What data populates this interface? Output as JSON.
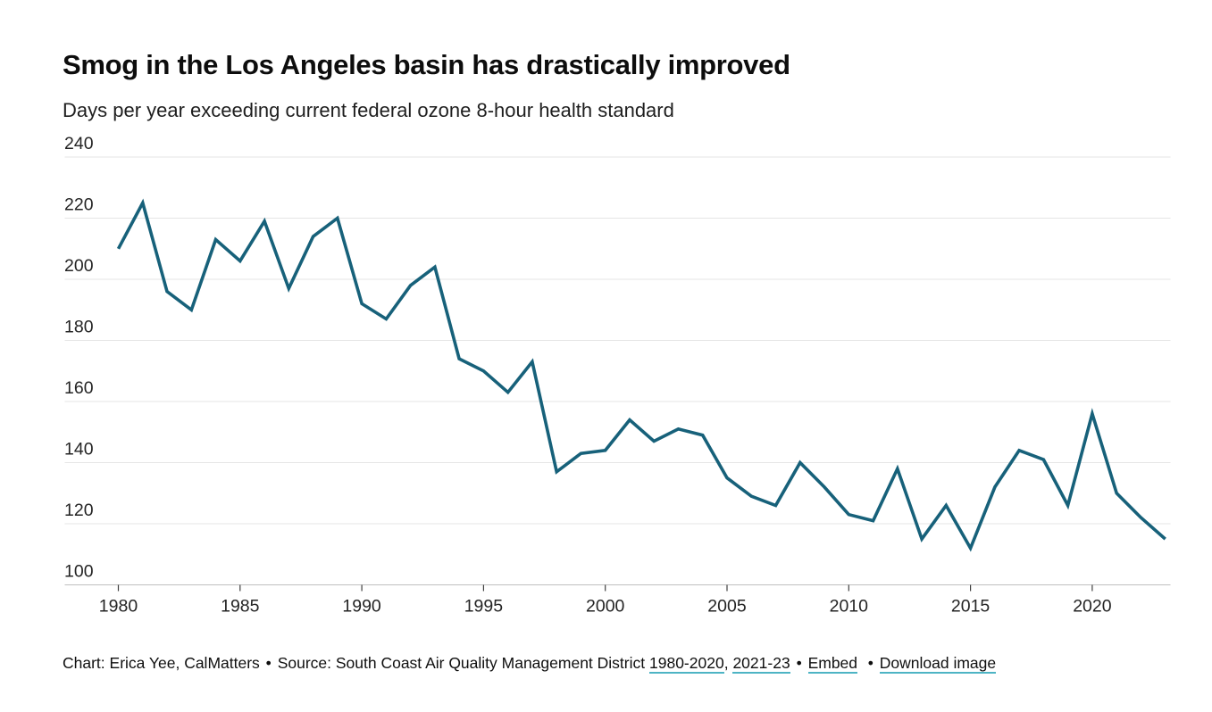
{
  "header": {
    "title": "Smog in the Los Angeles basin has drastically improved",
    "subtitle": "Days per year exceeding current federal ozone 8-hour health standard"
  },
  "chart_data": {
    "type": "line",
    "title": "Smog in the Los Angeles basin has drastically improved",
    "subtitle": "Days per year exceeding current federal ozone 8-hour health standard",
    "series_name": "Days per year exceeding federal ozone 8-hour standard",
    "x": [
      1980,
      1981,
      1982,
      1983,
      1984,
      1985,
      1986,
      1987,
      1988,
      1989,
      1990,
      1991,
      1992,
      1993,
      1994,
      1995,
      1996,
      1997,
      1998,
      1999,
      2000,
      2001,
      2002,
      2003,
      2004,
      2005,
      2006,
      2007,
      2008,
      2009,
      2010,
      2011,
      2012,
      2013,
      2014,
      2015,
      2016,
      2017,
      2018,
      2019,
      2020,
      2021,
      2022,
      2023
    ],
    "values": [
      210,
      225,
      196,
      190,
      213,
      206,
      219,
      197,
      214,
      220,
      192,
      187,
      198,
      204,
      174,
      170,
      163,
      173,
      137,
      143,
      144,
      154,
      147,
      151,
      149,
      135,
      129,
      126,
      140,
      132,
      123,
      121,
      138,
      115,
      126,
      112,
      132,
      144,
      141,
      126,
      156,
      130,
      122,
      115
    ],
    "xlabel": "",
    "ylabel": "",
    "ylim": [
      100,
      240
    ],
    "y_ticks": [
      100,
      120,
      140,
      160,
      180,
      200,
      220,
      240
    ],
    "x_ticks": [
      1980,
      1985,
      1990,
      1995,
      2000,
      2005,
      2010,
      2015,
      2020
    ],
    "grid": "horizontal",
    "legend": "none",
    "line_color": "#17617a"
  },
  "colors": {
    "line": "#17617a",
    "gridline": "#e5e5e5",
    "axis_line": "#bfbfbf",
    "tick_mark": "#3f3f3f",
    "link_underline": "#4db4c4",
    "text": "#0f0f0f"
  },
  "footer": {
    "credit": "Chart: Erica Yee, CalMatters",
    "bullet1": "•",
    "source": "Source: South Coast Air Quality Management District",
    "link_years_main": "1980-2020",
    "comma": ",",
    "link_years_recent": "2021-23",
    "bullet2": "•",
    "link_embed": "Embed",
    "bullet3": "•",
    "link_download": "Download image"
  }
}
